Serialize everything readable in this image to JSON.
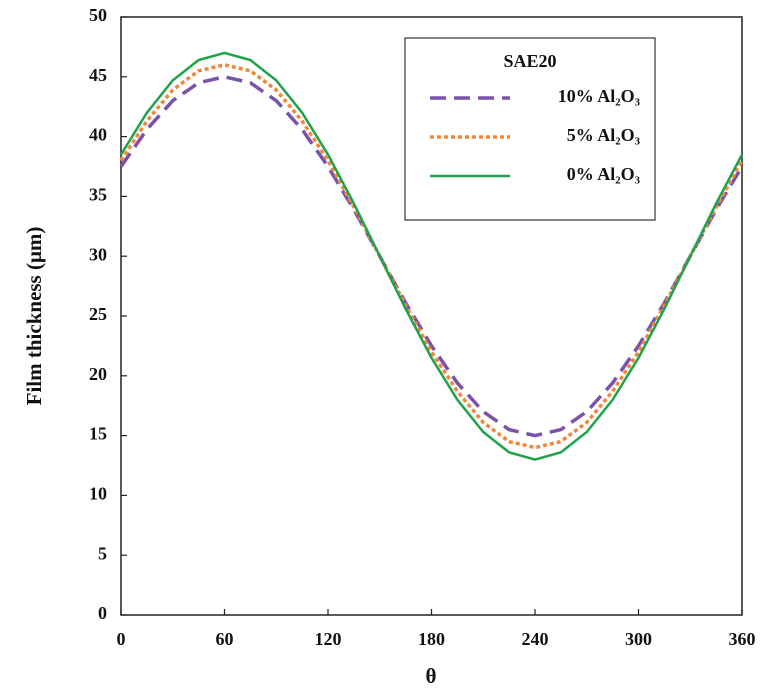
{
  "chart_data": {
    "type": "line",
    "xlabel": "θ",
    "ylabel": "Film thickness (μm)",
    "legend_title": "SAE20",
    "legend": "upper right",
    "x": [
      0,
      15,
      30,
      45,
      60,
      75,
      90,
      105,
      120,
      135,
      150,
      165,
      180,
      195,
      210,
      225,
      240,
      255,
      270,
      285,
      300,
      315,
      330,
      345,
      360
    ],
    "series": [
      {
        "name": "10% Al₂O₃",
        "color": "#7b52ab",
        "dash": "dashed",
        "values": [
          37.5,
          40.6,
          43.0,
          44.5,
          45,
          44.5,
          43.0,
          40.6,
          37.5,
          33.9,
          30,
          26.1,
          22.5,
          19.4,
          17.0,
          15.5,
          15,
          15.5,
          17.0,
          19.4,
          22.5,
          26.1,
          30,
          33.9,
          37.5
        ]
      },
      {
        "name": "5% Al₂O₃",
        "color": "#f0883c",
        "dash": "dotted",
        "values": [
          38,
          41.3,
          43.9,
          45.5,
          46,
          45.5,
          43.9,
          41.3,
          38,
          34.1,
          30,
          25.9,
          22,
          18.7,
          16.1,
          14.5,
          14,
          14.5,
          16.1,
          18.7,
          22,
          25.9,
          30,
          34.1,
          38
        ]
      },
      {
        "name": "0% Al₂O₃",
        "color": "#1fa34a",
        "dash": "solid",
        "values": [
          38.5,
          42.0,
          44.7,
          46.4,
          47,
          46.4,
          44.7,
          42.0,
          38.5,
          34.4,
          30,
          25.6,
          21.5,
          18.0,
          15.3,
          13.6,
          13,
          13.6,
          15.3,
          18.0,
          21.5,
          25.6,
          30,
          34.4,
          38.5
        ]
      }
    ],
    "xlim": [
      0,
      360
    ],
    "xticks": [
      0,
      60,
      120,
      180,
      240,
      300,
      360
    ],
    "ylim": [
      0,
      50
    ],
    "yticks": [
      0,
      5,
      10,
      15,
      20,
      25,
      30,
      35,
      40,
      45,
      50
    ]
  }
}
